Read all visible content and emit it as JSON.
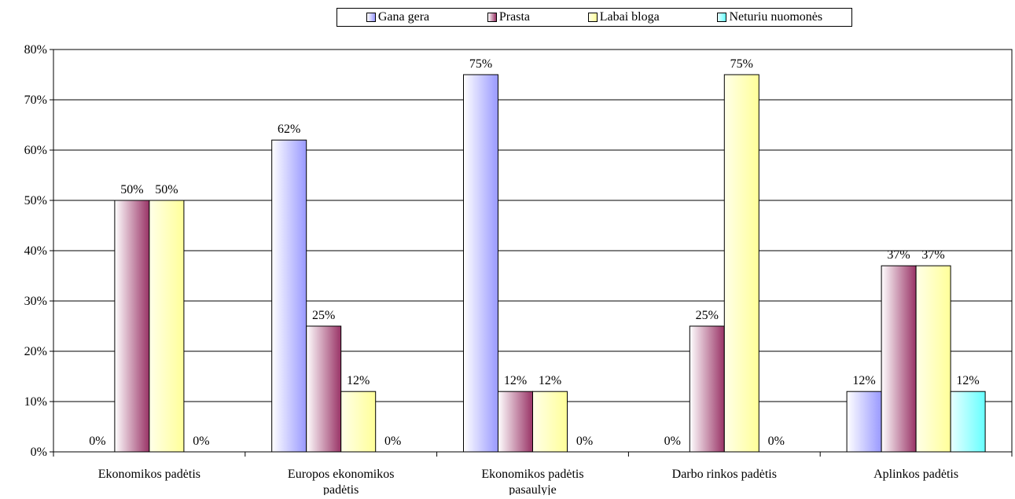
{
  "chart_data": {
    "type": "bar",
    "title": "",
    "xlabel": "",
    "ylabel": "",
    "categories": [
      [
        "Ekonomikos padėtis"
      ],
      [
        "Europos ekonomikos",
        "padėtis"
      ],
      [
        "Ekonomikos padėtis",
        "pasaulyje"
      ],
      [
        "Darbo rinkos padėtis"
      ],
      [
        "Aplinkos padėtis"
      ]
    ],
    "series": [
      {
        "name": "Gana gera",
        "values": [
          0,
          62,
          75,
          0,
          12
        ],
        "color_light": "#ffffff",
        "color_dark": "#9999ff"
      },
      {
        "name": "Prasta",
        "values": [
          50,
          25,
          12,
          25,
          37
        ],
        "color_light": "#ffffff",
        "color_dark": "#993366"
      },
      {
        "name": "Labai bloga",
        "values": [
          50,
          12,
          12,
          75,
          37
        ],
        "color_light": "#ffffe8",
        "color_dark": "#ffff99"
      },
      {
        "name": "Neturiu nuomonės",
        "values": [
          0,
          0,
          0,
          0,
          12
        ],
        "color_light": "#e8ffff",
        "color_dark": "#66ffff"
      }
    ],
    "ylim": [
      0,
      80
    ],
    "yticks": [
      0,
      10,
      20,
      30,
      40,
      50,
      60,
      70,
      80
    ],
    "ytick_suffix": "%",
    "value_suffix": "%",
    "grid": true,
    "legend_position": "top"
  }
}
